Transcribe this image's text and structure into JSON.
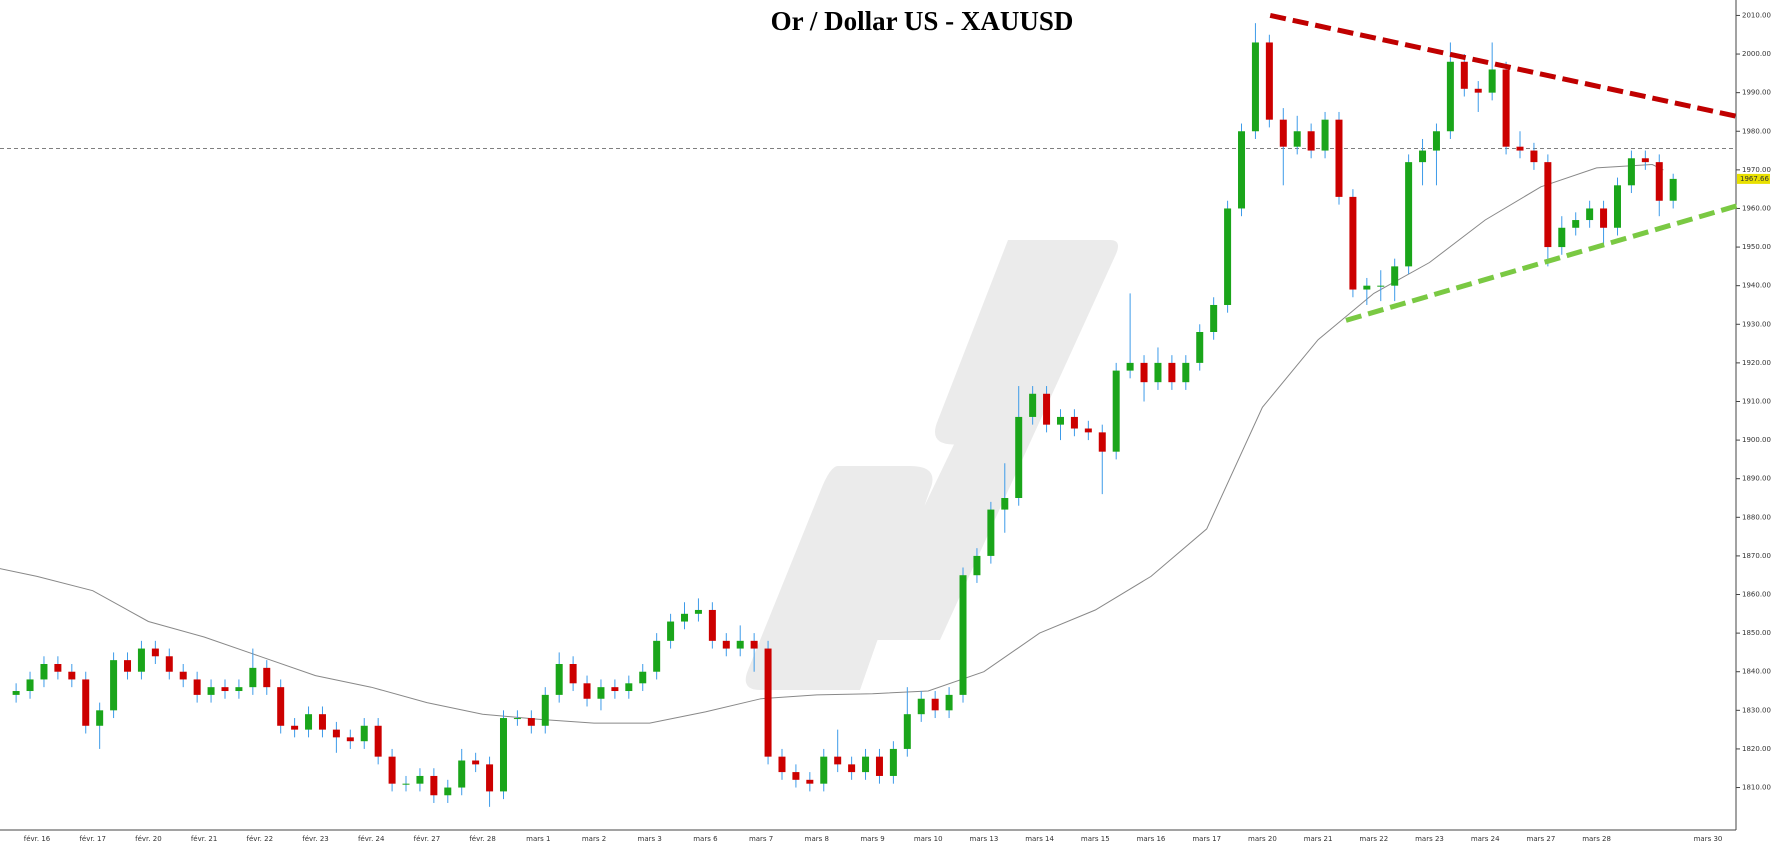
{
  "chart_data": {
    "type": "candlestick",
    "title": "Or / Dollar US - XAUUSD",
    "categories": [
      "févr. 16",
      "févr. 17",
      "févr. 20",
      "févr. 21",
      "févr. 22",
      "févr. 23",
      "févr. 24",
      "févr. 27",
      "févr. 28",
      "mars 1",
      "mars 2",
      "mars 3",
      "mars 6",
      "mars 7",
      "mars 8",
      "mars 9",
      "mars 10",
      "mars 13",
      "mars 14",
      "mars 15",
      "mars 16",
      "mars 17",
      "mars 20",
      "mars 21",
      "mars 22",
      "mars 23",
      "mars 24",
      "mars 27",
      "mars 28",
      null,
      "mars 30"
    ],
    "ylim": [
      1799,
      2014
    ],
    "yticks": [
      {
        "value": 1810,
        "label": "1810.00"
      },
      {
        "value": 1820,
        "label": "1820.00"
      },
      {
        "value": 1830,
        "label": "1830.00"
      },
      {
        "value": 1840,
        "label": "1840.00"
      },
      {
        "value": 1850,
        "label": "1850.00"
      },
      {
        "value": 1860,
        "label": "1860.00"
      },
      {
        "value": 1870,
        "label": "1870.00"
      },
      {
        "value": 1880,
        "label": "1880.00"
      },
      {
        "value": 1890,
        "label": "1890.00"
      },
      {
        "value": 1900,
        "label": "1900.00"
      },
      {
        "value": 1910,
        "label": "1910.00"
      },
      {
        "value": 1920,
        "label": "1920.00"
      },
      {
        "value": 1930,
        "label": "1930.00"
      },
      {
        "value": 1940,
        "label": "1940.00"
      },
      {
        "value": 1950,
        "label": "1950.00"
      },
      {
        "value": 1960,
        "label": "1960.00"
      },
      {
        "value": 1970,
        "label": "1970.00"
      },
      {
        "value": 1980,
        "label": "1980.00"
      },
      {
        "value": 1990,
        "label": "1990.00"
      },
      {
        "value": 2000,
        "label": "2000.00"
      },
      {
        "value": 2010,
        "label": "2010.00"
      }
    ],
    "up_color": "#1aa51a",
    "down_color": "#cc0000",
    "wick_color": "#3d9be9",
    "candles": [
      [
        1834,
        1837,
        1832,
        1835
      ],
      [
        1835,
        1840,
        1833,
        1838
      ],
      [
        1838,
        1844,
        1836,
        1842
      ],
      [
        1842,
        1844,
        1838,
        1840
      ],
      [
        1840,
        1842,
        1836,
        1838
      ],
      [
        1838,
        1840,
        1824,
        1826
      ],
      [
        1826,
        1832,
        1820,
        1830
      ],
      [
        1830,
        1845,
        1828,
        1843
      ],
      [
        1843,
        1845,
        1838,
        1840
      ],
      [
        1840,
        1848,
        1838,
        1846
      ],
      [
        1846,
        1848,
        1842,
        1844
      ],
      [
        1844,
        1846,
        1838,
        1840
      ],
      [
        1840,
        1842,
        1836,
        1838
      ],
      [
        1838,
        1840,
        1832,
        1834
      ],
      [
        1834,
        1838,
        1832,
        1836
      ],
      [
        1836,
        1838,
        1833,
        1835
      ],
      [
        1835,
        1838,
        1833,
        1836
      ],
      [
        1836,
        1846,
        1834,
        1841
      ],
      [
        1841,
        1843,
        1834,
        1836
      ],
      [
        1836,
        1838,
        1824,
        1826
      ],
      [
        1826,
        1828,
        1823,
        1825
      ],
      [
        1825,
        1831,
        1823,
        1829
      ],
      [
        1829,
        1831,
        1823,
        1825
      ],
      [
        1825,
        1827,
        1819,
        1823
      ],
      [
        1823,
        1825,
        1820,
        1822
      ],
      [
        1822,
        1828,
        1820,
        1826
      ],
      [
        1826,
        1828,
        1816,
        1818
      ],
      [
        1818,
        1820,
        1809,
        1811
      ],
      [
        1811,
        1813,
        1809,
        1811
      ],
      [
        1811,
        1815,
        1809,
        1813
      ],
      [
        1813,
        1815,
        1806,
        1808
      ],
      [
        1808,
        1812,
        1806,
        1810
      ],
      [
        1810,
        1820,
        1808,
        1817
      ],
      [
        1817,
        1819,
        1814,
        1816
      ],
      [
        1816,
        1818,
        1805,
        1809
      ],
      [
        1809,
        1830,
        1807,
        1828
      ],
      [
        1828,
        1830,
        1826,
        1828
      ],
      [
        1828,
        1830,
        1824,
        1826
      ],
      [
        1826,
        1836,
        1824,
        1834
      ],
      [
        1834,
        1845,
        1832,
        1842
      ],
      [
        1842,
        1844,
        1835,
        1837
      ],
      [
        1837,
        1839,
        1831,
        1833
      ],
      [
        1833,
        1838,
        1830,
        1836
      ],
      [
        1836,
        1838,
        1833,
        1835
      ],
      [
        1835,
        1839,
        1833,
        1837
      ],
      [
        1837,
        1842,
        1835,
        1840
      ],
      [
        1840,
        1850,
        1838,
        1848
      ],
      [
        1848,
        1855,
        1846,
        1853
      ],
      [
        1853,
        1858,
        1851,
        1855
      ],
      [
        1855,
        1859,
        1853,
        1856
      ],
      [
        1856,
        1858,
        1846,
        1848
      ],
      [
        1848,
        1850,
        1844,
        1846
      ],
      [
        1846,
        1852,
        1844,
        1848
      ],
      [
        1848,
        1850,
        1840,
        1846
      ],
      [
        1846,
        1848,
        1816,
        1818
      ],
      [
        1818,
        1820,
        1812,
        1814
      ],
      [
        1814,
        1816,
        1810,
        1812
      ],
      [
        1812,
        1814,
        1809,
        1811
      ],
      [
        1811,
        1820,
        1809,
        1818
      ],
      [
        1818,
        1825,
        1814,
        1816
      ],
      [
        1816,
        1818,
        1812,
        1814
      ],
      [
        1814,
        1820,
        1812,
        1818
      ],
      [
        1818,
        1820,
        1811,
        1813
      ],
      [
        1813,
        1822,
        1811,
        1820
      ],
      [
        1820,
        1836,
        1818,
        1829
      ],
      [
        1829,
        1835,
        1827,
        1833
      ],
      [
        1833,
        1835,
        1828,
        1830
      ],
      [
        1830,
        1836,
        1828,
        1834
      ],
      [
        1834,
        1867,
        1832,
        1865
      ],
      [
        1865,
        1872,
        1863,
        1870
      ],
      [
        1870,
        1884,
        1868,
        1882
      ],
      [
        1882,
        1894,
        1876,
        1885
      ],
      [
        1885,
        1914,
        1883,
        1906
      ],
      [
        1906,
        1914,
        1904,
        1912
      ],
      [
        1912,
        1914,
        1902,
        1904
      ],
      [
        1904,
        1908,
        1900,
        1906
      ],
      [
        1906,
        1908,
        1901,
        1903
      ],
      [
        1903,
        1905,
        1900,
        1902
      ],
      [
        1902,
        1904,
        1886,
        1897
      ],
      [
        1897,
        1920,
        1895,
        1918
      ],
      [
        1918,
        1938,
        1916,
        1920
      ],
      [
        1920,
        1922,
        1910,
        1915
      ],
      [
        1915,
        1924,
        1913,
        1920
      ],
      [
        1920,
        1922,
        1913,
        1915
      ],
      [
        1915,
        1922,
        1913,
        1920
      ],
      [
        1920,
        1930,
        1918,
        1928
      ],
      [
        1928,
        1937,
        1926,
        1935
      ],
      [
        1935,
        1962,
        1933,
        1960
      ],
      [
        1960,
        1982,
        1958,
        1980
      ],
      [
        1980,
        2008,
        1978,
        2003
      ],
      [
        2003,
        2005,
        1981,
        1983
      ],
      [
        1983,
        1986,
        1966,
        1976
      ],
      [
        1976,
        1984,
        1974,
        1980
      ],
      [
        1980,
        1982,
        1973,
        1975
      ],
      [
        1975,
        1985,
        1973,
        1983
      ],
      [
        1983,
        1985,
        1961,
        1963
      ],
      [
        1963,
        1965,
        1937,
        1939
      ],
      [
        1939,
        1942,
        1935,
        1940
      ],
      [
        1940,
        1944,
        1936,
        1940
      ],
      [
        1940,
        1947,
        1936,
        1945
      ],
      [
        1945,
        1974,
        1943,
        1972
      ],
      [
        1972,
        1978,
        1966,
        1975
      ],
      [
        1975,
        1982,
        1966,
        1980
      ],
      [
        1980,
        2003,
        1978,
        1998
      ],
      [
        1998,
        2000,
        1989,
        1991
      ],
      [
        1991,
        1993,
        1985,
        1990
      ],
      [
        1990,
        2003,
        1988,
        1996
      ],
      [
        1996,
        1998,
        1974,
        1976
      ],
      [
        1976,
        1980,
        1973,
        1975
      ],
      [
        1975,
        1977,
        1970,
        1972
      ],
      [
        1972,
        1974,
        1945,
        1950
      ],
      [
        1950,
        1958,
        1948,
        1955
      ],
      [
        1955,
        1959,
        1953,
        1957
      ],
      [
        1957,
        1962,
        1955,
        1960
      ],
      [
        1960,
        1962,
        1950,
        1955
      ],
      [
        1955,
        1968,
        1953,
        1966
      ],
      [
        1966,
        1975,
        1964,
        1973
      ],
      [
        1973,
        1975,
        1970,
        1972
      ],
      [
        1972,
        1974,
        1958,
        1962
      ],
      [
        1962,
        1969,
        1960,
        1967.66
      ]
    ],
    "ma": {
      "color": "#888888",
      "x": [
        -0.67,
        0,
        1,
        2,
        3,
        4,
        5,
        6,
        7,
        8,
        9,
        10,
        11,
        12,
        13,
        14,
        15,
        16,
        17,
        18,
        19,
        20,
        21,
        22,
        23,
        24,
        25,
        26,
        27,
        28,
        29,
        29.2
      ],
      "values": [
        1866.7,
        1864.7,
        1861,
        1853,
        1849,
        1844,
        1839,
        1836,
        1832,
        1829,
        1827.7,
        1826.7,
        1826.7,
        1829.6,
        1833,
        1834,
        1834.3,
        1835,
        1840,
        1850,
        1856,
        1864.7,
        1877,
        1908.5,
        1926,
        1938,
        1946,
        1957,
        1965.6,
        1970.5,
        1971.4,
        1970
      ]
    },
    "hline": {
      "value": 1975.5,
      "color": "#555555"
    },
    "trendlines": [
      {
        "color": "#c00000",
        "x": [
          22.14,
          30.57
        ],
        "values": [
          2010,
          1983.7
        ]
      },
      {
        "color": "#7ac943",
        "x": [
          23.5,
          30.57
        ],
        "values": [
          1931,
          1960.9
        ]
      }
    ],
    "last_price": 1967.66,
    "last_price_color": "#e8e000"
  }
}
